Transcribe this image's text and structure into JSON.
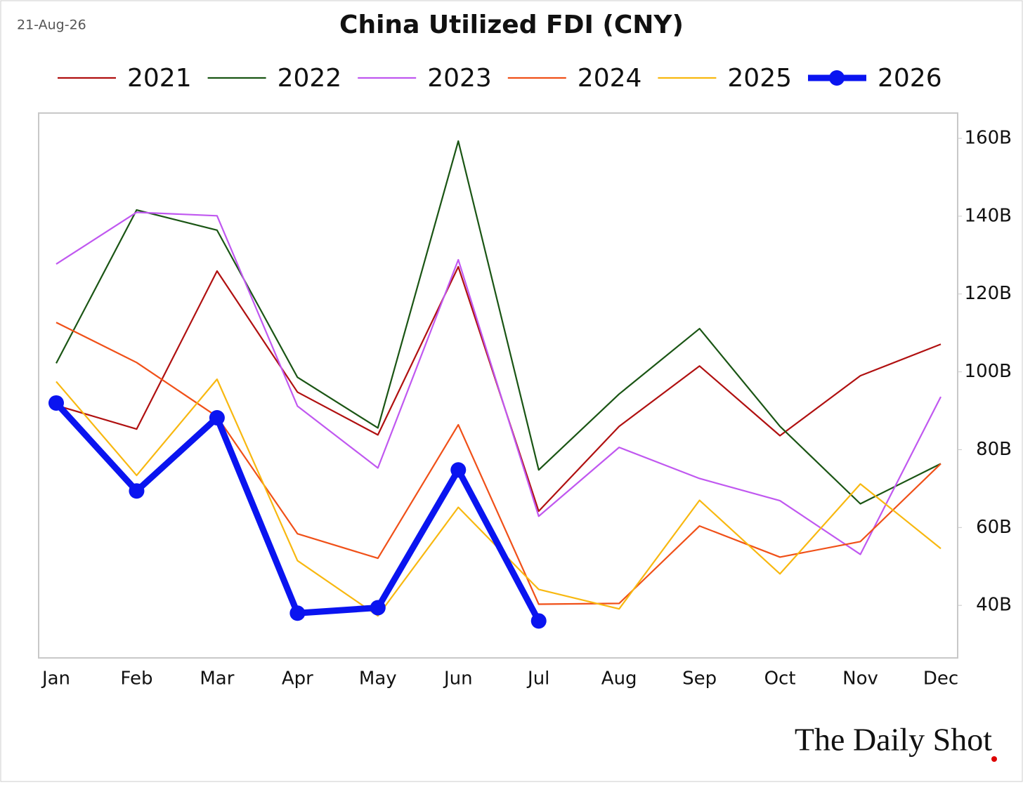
{
  "date": "21-Aug-26",
  "brand": "The Daily Shot",
  "chart_data": {
    "type": "line",
    "title": "China Utilized FDI (CNY)",
    "categories": [
      "Jan",
      "Feb",
      "Mar",
      "Apr",
      "May",
      "Jun",
      "Jul",
      "Aug",
      "Sep",
      "Oct",
      "Nov",
      "Dec"
    ],
    "series": [
      {
        "name": "2021",
        "color": "#b01010",
        "values": [
          91.4,
          85.3,
          125.9,
          94.8,
          83.8,
          127,
          64.2,
          86,
          101.5,
          83.6,
          99,
          107.1
        ]
      },
      {
        "name": "2022",
        "color": "#1a5514",
        "values": [
          102.2,
          141.6,
          136.4,
          98.6,
          85.6,
          159.3,
          74.8,
          94.3,
          111.1,
          86,
          66.1,
          76.4
        ]
      },
      {
        "name": "2023",
        "color": "#c058f0",
        "values": [
          127.7,
          141,
          140.1,
          91.2,
          75.3,
          128.8,
          62.9,
          80.6,
          72.6,
          66.9,
          53.1,
          93.6
        ]
      },
      {
        "name": "2024",
        "color": "#f05018",
        "values": [
          112.7,
          102.4,
          88.5,
          58.4,
          52.1,
          86.4,
          40.3,
          40.5,
          60.4,
          52.4,
          56.4,
          76.4
        ]
      },
      {
        "name": "2025",
        "color": "#f8b810",
        "values": [
          97.5,
          73.4,
          98.1,
          51.5,
          37.3,
          65.2,
          44.1,
          39.1,
          67,
          48.1,
          71.2,
          54.6
        ]
      },
      {
        "name": "2026",
        "color": "#0a14f0",
        "markers": true,
        "values": [
          92,
          69.4,
          88.2,
          38,
          39.4,
          74.8,
          36,
          null,
          null,
          null,
          null,
          null
        ]
      }
    ],
    "ylim": [
      26.5,
      166.5
    ],
    "yticks": [
      {
        "value": 40,
        "label": "40B"
      },
      {
        "value": 60,
        "label": "60B"
      },
      {
        "value": 80,
        "label": "80B"
      },
      {
        "value": 100,
        "label": "100B"
      },
      {
        "value": 120,
        "label": "120B"
      },
      {
        "value": 140,
        "label": "140B"
      },
      {
        "value": 160,
        "label": "160B"
      }
    ],
    "y_axis_side": "right",
    "legend": "top"
  }
}
